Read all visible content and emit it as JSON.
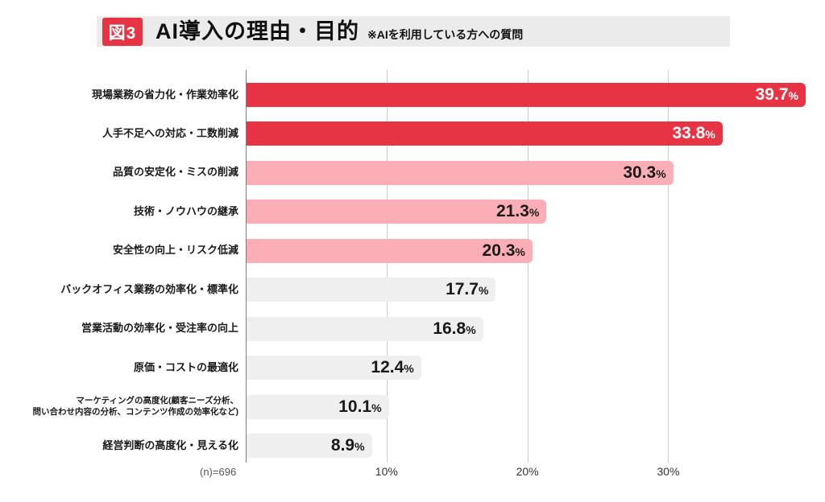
{
  "header": {
    "badge": "図3",
    "title": "AI導入の理由・目的",
    "subtitle": "※AIを利用している方への質問",
    "badge_color": "#e73444"
  },
  "footer": {
    "n_label": "(n)=696"
  },
  "chart_data": {
    "type": "bar",
    "orientation": "horizontal",
    "title": "AI導入の理由・目的",
    "unit": "%",
    "categories": [
      "現場業務の省力化・作業効率化",
      "人手不足への対応・工数削減",
      "品質の安定化・ミスの削減",
      "技術・ノウハウの継承",
      "安全性の向上・リスク低減",
      "バックオフィス業務の効率化・標準化",
      "営業活動の効率化・受注率の向上",
      "原価・コストの最適化",
      "マーケティングの高度化(顧客ニーズ分析、\n問い合わせ内容の分析、コンテンツ作成の効率化など)",
      "経営判断の高度化・見える化"
    ],
    "values": [
      39.7,
      33.8,
      30.3,
      21.3,
      20.3,
      17.7,
      16.8,
      12.4,
      10.1,
      8.9
    ],
    "value_labels": [
      "39.7",
      "33.8",
      "30.3",
      "21.3",
      "20.3",
      "17.7",
      "16.8",
      "12.4",
      "10.1",
      "8.9"
    ],
    "bar_colors": [
      "#e73444",
      "#e73444",
      "#fbaeb6",
      "#fbaeb6",
      "#fbaeb6",
      "#efefef",
      "#efefef",
      "#efefef",
      "#efefef",
      "#efefef"
    ],
    "value_text_colors": [
      "#ffffff",
      "#ffffff",
      "#1a1a1a",
      "#1a1a1a",
      "#1a1a1a",
      "#1a1a1a",
      "#1a1a1a",
      "#1a1a1a",
      "#1a1a1a",
      "#1a1a1a"
    ],
    "x_ticks": [
      10,
      20,
      30
    ],
    "x_tick_labels": [
      "10%",
      "20%",
      "30%"
    ],
    "xlim": [
      0,
      40
    ],
    "grid": true,
    "legend": false,
    "sample_size_note": "(n)=696",
    "n": 696
  }
}
